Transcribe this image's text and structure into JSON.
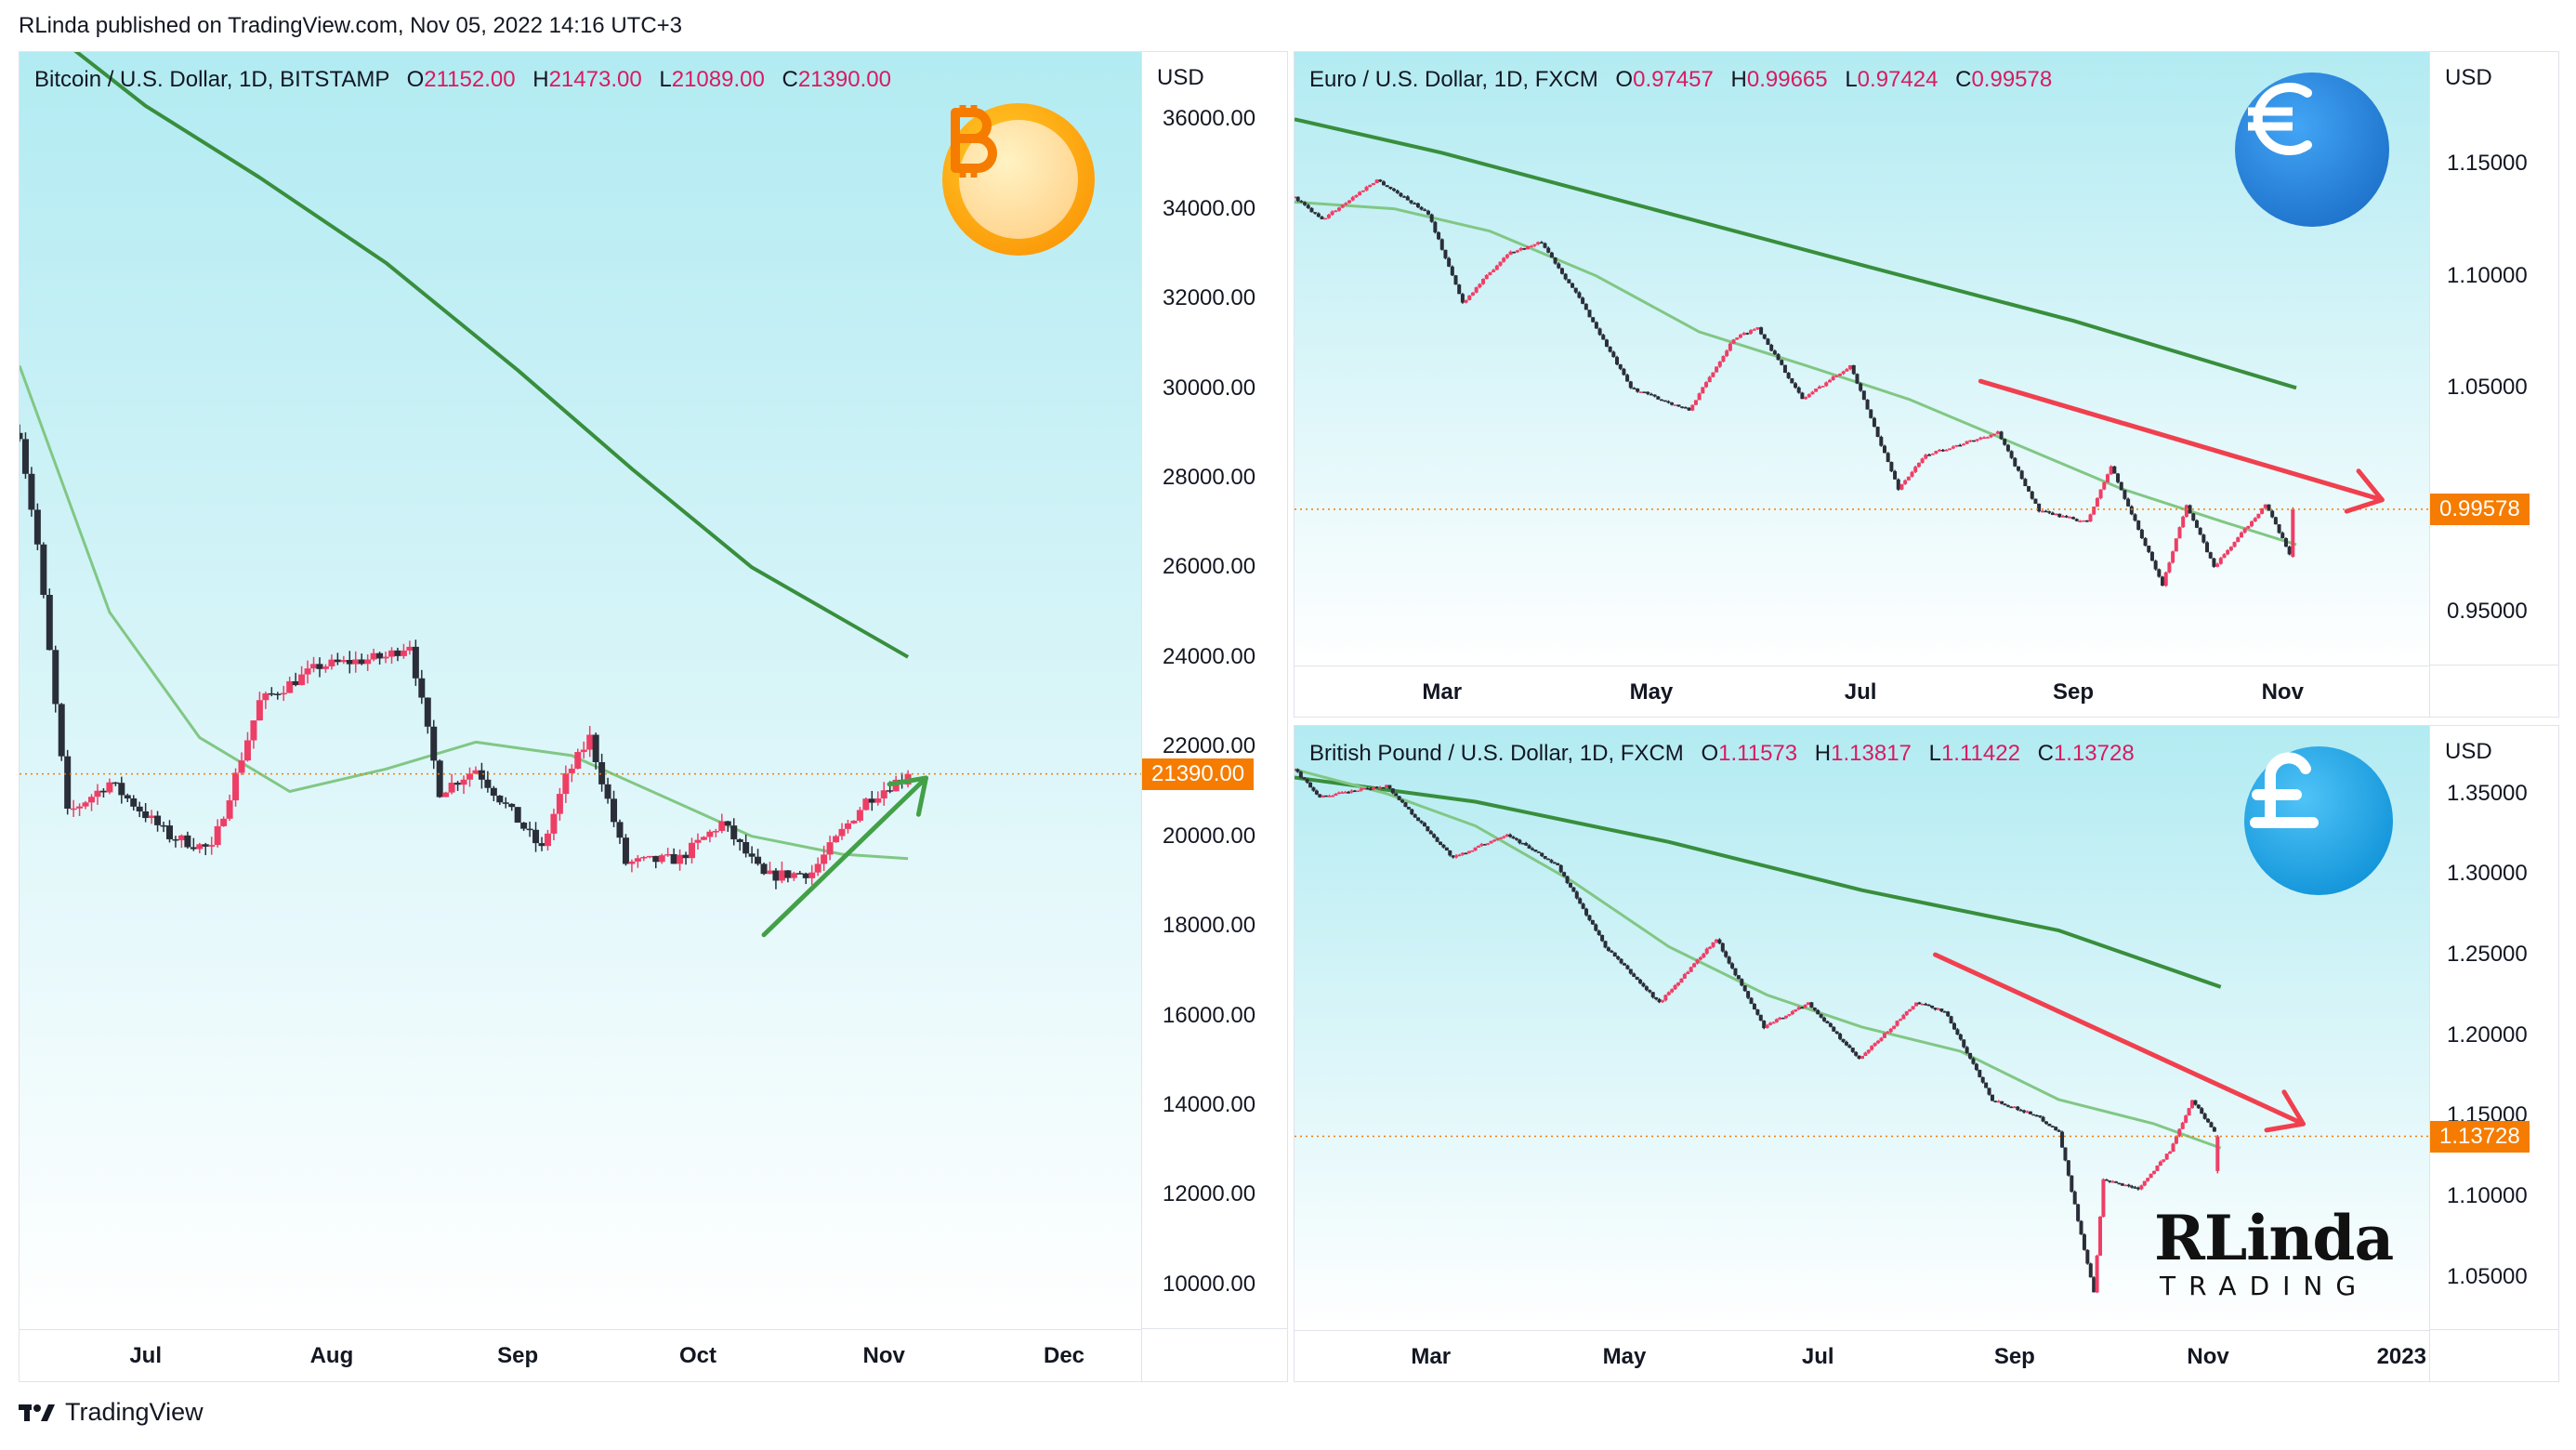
{
  "header": {
    "published": "RLinda published on TradingView.com, Nov 05, 2022 14:16 UTC+3"
  },
  "footer": {
    "brand": "TradingView"
  },
  "colors": {
    "candle_up": "#ef3e66",
    "candle_down": "#2a2e39",
    "ma_fast": "#81c784",
    "ma_slow": "#388e3c",
    "bull_arrow": "#43a047",
    "bear_arrow": "#f0404e",
    "price_tag": "#f57c00",
    "bg_top": "#b2ebf2",
    "bg_bottom": "#ffffff"
  },
  "btc": {
    "legend": {
      "title": "Bitcoin / U.S. Dollar, 1D, BITSTAMP",
      "o_label": "O",
      "o": "21152.00",
      "h_label": "H",
      "h": "21473.00",
      "l_label": "L",
      "l": "21089.00",
      "c_label": "C",
      "c": "21390.00"
    },
    "unit": "USD",
    "icon": "bitcoin-icon",
    "price_tag": "21390.00",
    "y_ticks": [
      "36000.00",
      "34000.00",
      "32000.00",
      "30000.00",
      "28000.00",
      "26000.00",
      "24000.00",
      "22000.00",
      "20000.00",
      "18000.00",
      "16000.00",
      "14000.00",
      "12000.00",
      "10000.00"
    ],
    "x_ticks": [
      "Jul",
      "Aug",
      "Sep",
      "Oct",
      "Nov",
      "Dec"
    ]
  },
  "eur": {
    "legend": {
      "title": "Euro / U.S. Dollar, 1D, FXCM",
      "o_label": "O",
      "o": "0.97457",
      "h_label": "H",
      "h": "0.99665",
      "l_label": "L",
      "l": "0.97424",
      "c_label": "C",
      "c": "0.99578"
    },
    "unit": "USD",
    "icon": "euro-icon",
    "price_tag": "0.99578",
    "y_ticks": [
      "1.15000",
      "1.10000",
      "1.05000",
      "0.95000"
    ],
    "x_ticks": [
      "Mar",
      "May",
      "Jul",
      "Sep",
      "Nov"
    ]
  },
  "gbp": {
    "legend": {
      "title": "British Pound / U.S. Dollar, 1D, FXCM",
      "o_label": "O",
      "o": "1.11573",
      "h_label": "H",
      "h": "1.13817",
      "l_label": "L",
      "l": "1.11422",
      "c_label": "C",
      "c": "1.13728"
    },
    "unit": "USD",
    "icon": "pound-icon",
    "price_tag": "1.13728",
    "y_ticks": [
      "1.35000",
      "1.30000",
      "1.25000",
      "1.20000",
      "1.15000",
      "1.10000",
      "1.05000"
    ],
    "x_ticks": [
      "Mar",
      "May",
      "Jul",
      "Sep",
      "Nov",
      "2023"
    ],
    "watermark": {
      "brand_big": "RLinda",
      "brand_small": "TRADING"
    }
  },
  "chart_data": [
    {
      "type": "candlestick",
      "title": "Bitcoin / U.S. Dollar, 1D, BITSTAMP",
      "ylabel": "USD",
      "ylim": [
        9000,
        37500
      ],
      "x_range": [
        "2022-06-10",
        "2022-12-14"
      ],
      "last": {
        "open": 21152,
        "high": 21473,
        "low": 21089,
        "close": 21390
      },
      "close_path": {
        "x": [
          "2022-06-10",
          "2022-06-13",
          "2022-06-18",
          "2022-06-25",
          "2022-07-05",
          "2022-07-12",
          "2022-07-20",
          "2022-07-30",
          "2022-08-10",
          "2022-08-14",
          "2022-08-19",
          "2022-08-25",
          "2022-09-05",
          "2022-09-09",
          "2022-09-13",
          "2022-09-19",
          "2022-09-28",
          "2022-10-05",
          "2022-10-12",
          "2022-10-20",
          "2022-10-25",
          "2022-10-29",
          "2022-11-05"
        ],
        "y": [
          29000,
          26500,
          20500,
          21200,
          20000,
          19700,
          23000,
          23800,
          24000,
          24300,
          21000,
          21500,
          19700,
          21300,
          22200,
          19400,
          19500,
          20300,
          19100,
          19200,
          20100,
          20800,
          21390
        ]
      },
      "series": [
        {
          "name": "",
          "kind": "moving-average-slow",
          "x": [
            "2022-06-10",
            "2022-07-01",
            "2022-07-20",
            "2022-08-10",
            "2022-09-01",
            "2022-09-20",
            "2022-10-10",
            "2022-11-05"
          ],
          "y": [
            38500,
            36300,
            34700,
            32800,
            30400,
            28200,
            26000,
            24000
          ]
        },
        {
          "name": "",
          "kind": "moving-average-fast",
          "x": [
            "2022-06-10",
            "2022-06-25",
            "2022-07-10",
            "2022-07-25",
            "2022-08-10",
            "2022-08-25",
            "2022-09-10",
            "2022-09-25",
            "2022-10-10",
            "2022-10-25",
            "2022-11-05"
          ],
          "y": [
            30500,
            25000,
            22200,
            21000,
            21500,
            22100,
            21800,
            20900,
            20000,
            19600,
            19500
          ]
        }
      ],
      "annotations": [
        {
          "type": "arrow",
          "direction": "up",
          "from": [
            "2022-10-12",
            17800
          ],
          "to": [
            "2022-11-08",
            21300
          ]
        }
      ]
    },
    {
      "type": "candlestick",
      "title": "Euro / U.S. Dollar, 1D, FXCM",
      "ylabel": "USD",
      "ylim": [
        0.926,
        1.2
      ],
      "x_range": [
        "2022-01-17",
        "2022-12-14"
      ],
      "last": {
        "open": 0.97457,
        "high": 0.99665,
        "low": 0.97424,
        "close": 0.99578
      },
      "close_path": {
        "x": [
          "2022-01-17",
          "2022-01-25",
          "2022-02-10",
          "2022-02-25",
          "2022-03-07",
          "2022-03-20",
          "2022-03-30",
          "2022-04-10",
          "2022-04-25",
          "2022-05-12",
          "2022-05-25",
          "2022-06-01",
          "2022-06-14",
          "2022-06-28",
          "2022-07-12",
          "2022-07-20",
          "2022-08-10",
          "2022-08-22",
          "2022-09-05",
          "2022-09-12",
          "2022-09-27",
          "2022-10-04",
          "2022-10-12",
          "2022-10-27",
          "2022-11-03",
          "2022-11-04"
        ],
        "y": [
          1.135,
          1.125,
          1.143,
          1.128,
          1.088,
          1.11,
          1.115,
          1.09,
          1.05,
          1.04,
          1.072,
          1.077,
          1.045,
          1.06,
          1.005,
          1.02,
          1.03,
          0.995,
          0.99,
          1.015,
          0.962,
          0.998,
          0.97,
          0.998,
          0.976,
          0.99578
        ]
      },
      "series": [
        {
          "name": "",
          "kind": "moving-average-slow",
          "x": [
            "2022-01-17",
            "2022-03-01",
            "2022-05-01",
            "2022-07-01",
            "2022-09-01",
            "2022-11-05"
          ],
          "y": [
            1.17,
            1.155,
            1.13,
            1.105,
            1.08,
            1.05
          ]
        },
        {
          "name": "",
          "kind": "moving-average-fast",
          "x": [
            "2022-01-17",
            "2022-02-15",
            "2022-03-15",
            "2022-04-15",
            "2022-05-15",
            "2022-06-15",
            "2022-07-15",
            "2022-08-15",
            "2022-09-15",
            "2022-10-15",
            "2022-11-05"
          ],
          "y": [
            1.133,
            1.13,
            1.12,
            1.1,
            1.075,
            1.06,
            1.045,
            1.025,
            1.005,
            0.99,
            0.98
          ]
        }
      ],
      "annotations": [
        {
          "type": "arrow",
          "direction": "down",
          "from": [
            "2022-08-05",
            1.053
          ],
          "to": [
            "2022-11-30",
            1.0
          ]
        }
      ]
    },
    {
      "type": "candlestick",
      "title": "British Pound / U.S. Dollar, 1D, FXCM",
      "ylabel": "USD",
      "ylim": [
        1.017,
        1.392
      ],
      "x_range": [
        "2022-01-17",
        "2023-01-10"
      ],
      "last": {
        "open": 1.11573,
        "high": 1.13817,
        "low": 1.11422,
        "close": 1.13728
      },
      "close_path": {
        "x": [
          "2022-01-17",
          "2022-01-25",
          "2022-02-15",
          "2022-03-08",
          "2022-03-25",
          "2022-04-10",
          "2022-04-25",
          "2022-05-12",
          "2022-05-30",
          "2022-06-14",
          "2022-06-28",
          "2022-07-14",
          "2022-08-01",
          "2022-08-10",
          "2022-08-25",
          "2022-09-08",
          "2022-09-15",
          "2022-09-26",
          "2022-09-29",
          "2022-10-10",
          "2022-10-20",
          "2022-10-27",
          "2022-11-04"
        ],
        "y": [
          1.365,
          1.348,
          1.355,
          1.31,
          1.325,
          1.305,
          1.255,
          1.22,
          1.26,
          1.205,
          1.22,
          1.185,
          1.22,
          1.215,
          1.16,
          1.15,
          1.14,
          1.04,
          1.11,
          1.105,
          1.128,
          1.16,
          1.13728
        ]
      },
      "series": [
        {
          "name": "",
          "kind": "moving-average-slow",
          "x": [
            "2022-01-17",
            "2022-03-15",
            "2022-05-15",
            "2022-07-15",
            "2022-09-15",
            "2022-11-05"
          ],
          "y": [
            1.36,
            1.345,
            1.32,
            1.29,
            1.265,
            1.23
          ]
        },
        {
          "name": "",
          "kind": "moving-average-fast",
          "x": [
            "2022-01-17",
            "2022-02-15",
            "2022-03-15",
            "2022-04-15",
            "2022-05-15",
            "2022-06-15",
            "2022-07-15",
            "2022-08-15",
            "2022-09-15",
            "2022-10-15",
            "2022-11-05"
          ],
          "y": [
            1.365,
            1.35,
            1.33,
            1.295,
            1.255,
            1.225,
            1.205,
            1.19,
            1.16,
            1.145,
            1.13
          ]
        }
      ],
      "annotations": [
        {
          "type": "arrow",
          "direction": "down",
          "from": [
            "2022-08-07",
            1.25
          ],
          "to": [
            "2022-12-01",
            1.145
          ]
        }
      ]
    }
  ]
}
